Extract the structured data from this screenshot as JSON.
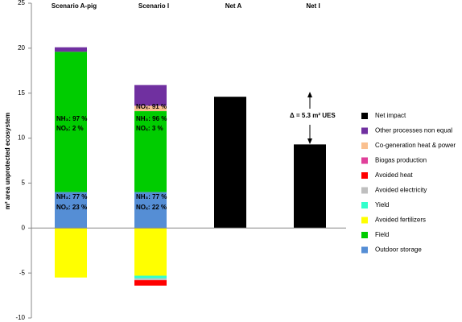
{
  "chart_data": {
    "type": "stacked-bar",
    "y_label": "m² area unprotected ecosystem",
    "categories": [
      "Scenario A-pig",
      "Scenario I",
      "Net A",
      "Net I"
    ],
    "ylim": [
      -10,
      25
    ],
    "yticks": [
      -10,
      -5,
      0,
      5,
      10,
      15,
      20,
      25
    ],
    "grid": false,
    "legend": "right",
    "series": [
      {
        "name": "Outdoor storage",
        "color": "#558ed5",
        "values": [
          4.0,
          4.0,
          null,
          null
        ]
      },
      {
        "name": "Field",
        "color": "#00cc00",
        "values": [
          15.6,
          9.0,
          null,
          null
        ]
      },
      {
        "name": "Avoided fertilizers",
        "color": "#ffff00",
        "values": [
          -5.5,
          -5.3,
          null,
          null
        ]
      },
      {
        "name": "Yield",
        "color": "#33ffcc",
        "values": [
          null,
          -0.3,
          null,
          null
        ]
      },
      {
        "name": "Avoided electricity",
        "color": "#bfbfbf",
        "values": [
          null,
          -0.2,
          null,
          null
        ]
      },
      {
        "name": "Avoided heat",
        "color": "#ff0000",
        "values": [
          null,
          -0.6,
          null,
          null
        ]
      },
      {
        "name": "Biogas production",
        "color": "#e0409a",
        "values": [
          null,
          null,
          null,
          null
        ]
      },
      {
        "name": "Co-generation heat & power",
        "color": "#fac090",
        "values": [
          null,
          0.6,
          null,
          null
        ]
      },
      {
        "name": "Other processes non equal",
        "color": "#7030a0",
        "values": [
          0.5,
          2.3,
          null,
          null
        ]
      },
      {
        "name": "Net impact",
        "color": "#000000",
        "values": [
          null,
          null,
          14.6,
          9.3
        ]
      }
    ],
    "annotations": [
      "NH₃: 97 %",
      "NOₓ: 2 %",
      "NH₃: 77 %",
      "NOₓ: 23 %",
      "NOₓ: 91 %",
      "NH₃: 96 %",
      "NOₓ: 3 %",
      "NH₃: 77 %",
      "NOₓ: 22 %",
      "Δ = 5.3  m² UES"
    ]
  }
}
